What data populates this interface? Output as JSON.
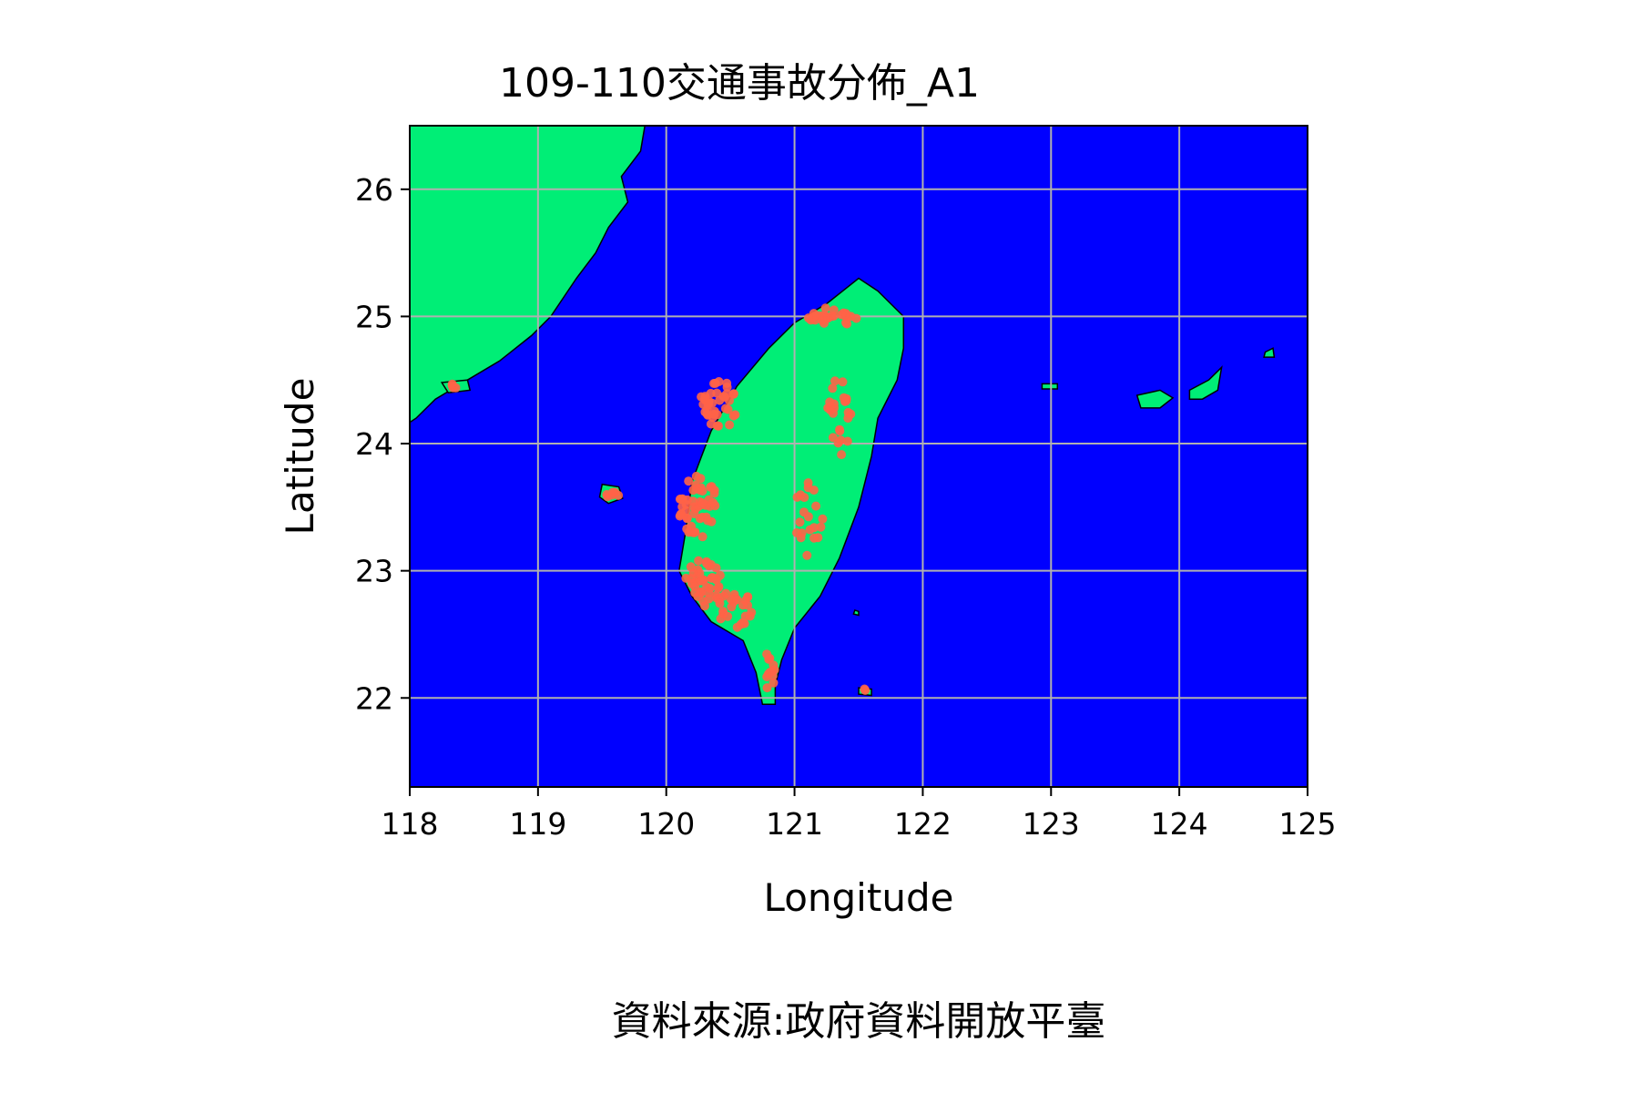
{
  "chart_data": {
    "type": "scatter",
    "title": "109-110交通事故分佈_A1",
    "xlabel": "Longitude",
    "ylabel": "Latitude",
    "xlim": [
      118,
      125
    ],
    "ylim": [
      21.3,
      26.5
    ],
    "xticks": [
      118,
      119,
      120,
      121,
      122,
      123,
      124,
      125
    ],
    "yticks": [
      22,
      23,
      24,
      25,
      26
    ],
    "grid": true,
    "legend": "none",
    "source_text": "資料來源:政府資料開放平臺",
    "colors": {
      "ocean": "#0000ff",
      "land": "#00ee76",
      "accident": "#ff6347",
      "coastline": "#000000",
      "grid": "#b0b0b0"
    },
    "clusters": [
      {
        "lon": 120.4,
        "lat": 24.3,
        "dlon": 0.15,
        "dlat": 0.2,
        "n": 40
      },
      {
        "lon": 120.25,
        "lat": 23.5,
        "dlon": 0.15,
        "dlat": 0.25,
        "n": 50
      },
      {
        "lon": 120.3,
        "lat": 22.9,
        "dlon": 0.15,
        "dlat": 0.2,
        "n": 40
      },
      {
        "lon": 120.55,
        "lat": 22.7,
        "dlon": 0.15,
        "dlat": 0.15,
        "n": 25
      },
      {
        "lon": 121.3,
        "lat": 25.0,
        "dlon": 0.2,
        "dlat": 0.07,
        "n": 30
      },
      {
        "lon": 121.35,
        "lat": 24.2,
        "dlon": 0.1,
        "dlat": 0.35,
        "n": 25
      },
      {
        "lon": 121.1,
        "lat": 23.4,
        "dlon": 0.12,
        "dlat": 0.3,
        "n": 20
      },
      {
        "lon": 120.8,
        "lat": 22.2,
        "dlon": 0.06,
        "dlat": 0.15,
        "n": 12
      },
      {
        "lon": 119.58,
        "lat": 23.6,
        "dlon": 0.05,
        "dlat": 0.04,
        "n": 6
      },
      {
        "lon": 118.35,
        "lat": 24.45,
        "dlon": 0.05,
        "dlat": 0.02,
        "n": 4
      },
      {
        "lon": 121.55,
        "lat": 22.06,
        "dlon": 0.02,
        "dlat": 0.02,
        "n": 2
      }
    ]
  }
}
